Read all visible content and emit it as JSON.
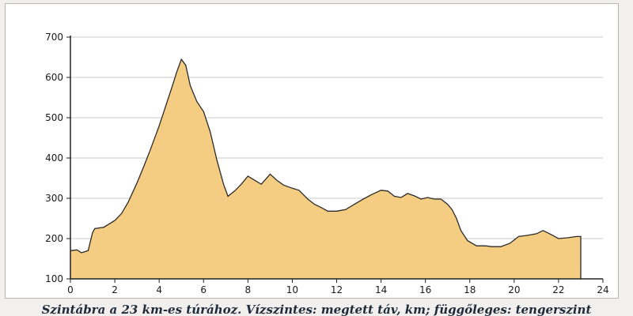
{
  "caption": "Szintábra a 23 km-es túrához. Vízszintes: megtett táv, km; függőleges: tengerszint",
  "colors": {
    "area_fill": "#f5cd82",
    "area_stroke": "#2a2a2a",
    "grid": "#c9c9c9",
    "axis": "#222222",
    "panel_bg": "#ffffff"
  },
  "chart_data": {
    "type": "area",
    "title": "",
    "xlabel": "",
    "ylabel": "",
    "xlim": [
      0,
      24
    ],
    "ylim": [
      100,
      700
    ],
    "xticks": [
      0,
      2,
      4,
      6,
      8,
      10,
      12,
      14,
      16,
      18,
      20,
      22,
      24
    ],
    "yticks": [
      100,
      200,
      300,
      400,
      500,
      600,
      700
    ],
    "grid": "horizontal",
    "series": [
      {
        "points": [
          [
            0,
            170
          ],
          [
            0.3,
            172
          ],
          [
            0.5,
            165
          ],
          [
            0.8,
            170
          ],
          [
            1.0,
            215
          ],
          [
            1.1,
            225
          ],
          [
            1.5,
            228
          ],
          [
            2.0,
            245
          ],
          [
            2.3,
            262
          ],
          [
            2.6,
            290
          ],
          [
            3.0,
            338
          ],
          [
            3.3,
            378
          ],
          [
            3.6,
            420
          ],
          [
            4.0,
            480
          ],
          [
            4.3,
            530
          ],
          [
            4.6,
            580
          ],
          [
            4.8,
            615
          ],
          [
            5.0,
            645
          ],
          [
            5.2,
            630
          ],
          [
            5.4,
            580
          ],
          [
            5.7,
            540
          ],
          [
            6.0,
            515
          ],
          [
            6.3,
            465
          ],
          [
            6.6,
            395
          ],
          [
            6.9,
            335
          ],
          [
            7.1,
            305
          ],
          [
            7.4,
            318
          ],
          [
            7.7,
            335
          ],
          [
            8.0,
            355
          ],
          [
            8.3,
            345
          ],
          [
            8.6,
            335
          ],
          [
            9.0,
            360
          ],
          [
            9.3,
            345
          ],
          [
            9.6,
            333
          ],
          [
            10.0,
            325
          ],
          [
            10.3,
            320
          ],
          [
            10.7,
            298
          ],
          [
            11.0,
            285
          ],
          [
            11.3,
            277
          ],
          [
            11.6,
            268
          ],
          [
            12.0,
            268
          ],
          [
            12.4,
            272
          ],
          [
            12.8,
            285
          ],
          [
            13.2,
            298
          ],
          [
            13.6,
            310
          ],
          [
            14.0,
            320
          ],
          [
            14.3,
            318
          ],
          [
            14.6,
            305
          ],
          [
            14.9,
            302
          ],
          [
            15.2,
            312
          ],
          [
            15.5,
            306
          ],
          [
            15.8,
            298
          ],
          [
            16.1,
            302
          ],
          [
            16.4,
            298
          ],
          [
            16.7,
            298
          ],
          [
            17.0,
            285
          ],
          [
            17.2,
            272
          ],
          [
            17.4,
            250
          ],
          [
            17.6,
            220
          ],
          [
            17.9,
            195
          ],
          [
            18.3,
            182
          ],
          [
            18.7,
            182
          ],
          [
            19.0,
            180
          ],
          [
            19.4,
            180
          ],
          [
            19.8,
            188
          ],
          [
            20.2,
            205
          ],
          [
            20.6,
            208
          ],
          [
            21.0,
            212
          ],
          [
            21.3,
            220
          ],
          [
            21.6,
            212
          ],
          [
            22.0,
            200
          ],
          [
            22.4,
            202
          ],
          [
            22.8,
            205
          ],
          [
            23.0,
            205
          ]
        ]
      }
    ]
  }
}
